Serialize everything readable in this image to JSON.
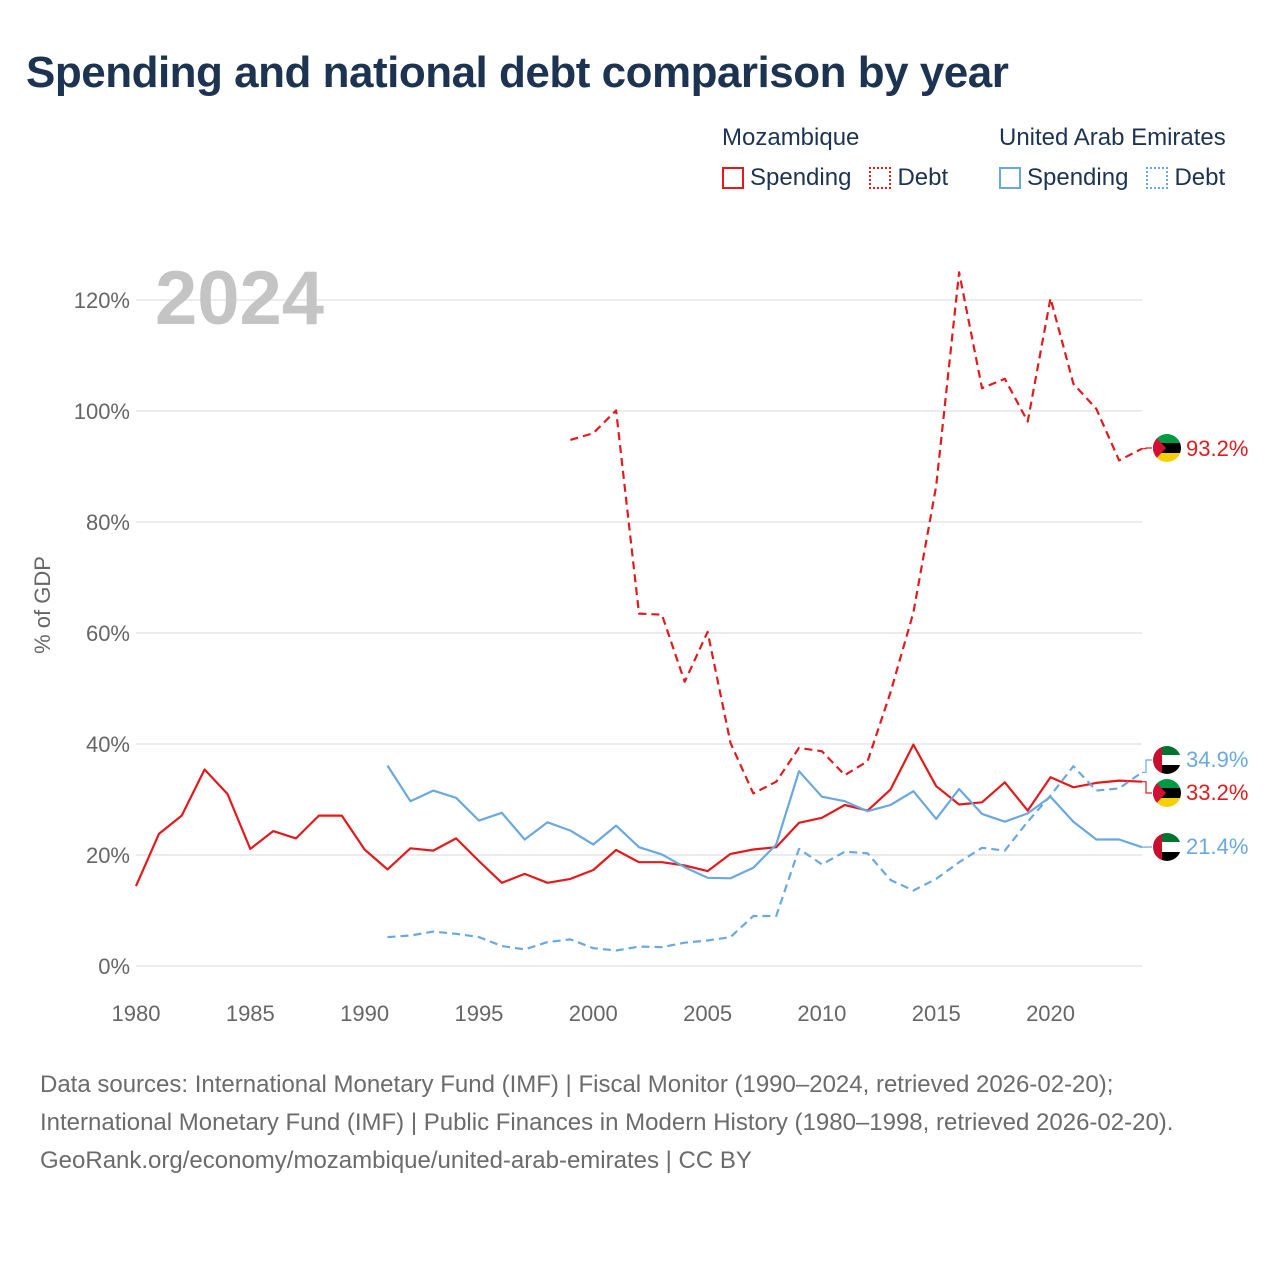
{
  "title": "Spending and national debt comparison by year",
  "year_label": "2024",
  "legend": {
    "groups": [
      {
        "name": "Mozambique",
        "color": "#e31a1c",
        "items": [
          "Spending",
          "Debt"
        ]
      },
      {
        "name": "United Arab Emirates",
        "color": "#6aa8e0",
        "items": [
          "Spending",
          "Debt"
        ]
      }
    ]
  },
  "footer": {
    "sources": "Data sources: International Monetary Fund (IMF) | Fiscal Monitor (1990–2024, retrieved 2026-02-20); International Monetary Fund (IMF) | Public Finances in Modern History (1980–1998, retrieved 2026-02-20).",
    "credit": "GeoRank.org/economy/mozambique/united-arab-emirates | CC BY"
  },
  "chart_data": {
    "type": "line",
    "title": "Spending and national debt comparison by year",
    "xlabel": "",
    "ylabel": "% of GDP",
    "xlim": [
      1980,
      2024
    ],
    "ylim": [
      0,
      125
    ],
    "x_ticks": [
      1980,
      1985,
      1990,
      1995,
      2000,
      2005,
      2010,
      2015,
      2020
    ],
    "y_ticks": [
      0,
      20,
      40,
      60,
      80,
      100,
      120
    ],
    "y_tick_labels": [
      "0%",
      "20%",
      "40%",
      "60%",
      "80%",
      "100%",
      "120%"
    ],
    "grid": true,
    "series": [
      {
        "name": "Mozambique Spending",
        "color": "#e31a1c",
        "dash": "solid",
        "end_label": "33.2%",
        "x": [
          1980,
          1981,
          1982,
          1983,
          1984,
          1985,
          1986,
          1987,
          1988,
          1989,
          1990,
          1991,
          1992,
          1993,
          1994,
          1995,
          1996,
          1997,
          1998,
          1999,
          2000,
          2001,
          2002,
          2003,
          2004,
          2005,
          2006,
          2007,
          2008,
          2009,
          2010,
          2011,
          2012,
          2013,
          2014,
          2015,
          2016,
          2017,
          2018,
          2019,
          2020,
          2021,
          2022,
          2023,
          2024
        ],
        "values": [
          14.4,
          23.8,
          27.1,
          35.4,
          31.0,
          21.1,
          24.3,
          23.0,
          27.1,
          27.1,
          21.0,
          17.4,
          21.2,
          20.8,
          23.0,
          18.9,
          15.0,
          16.6,
          15.0,
          15.7,
          17.3,
          20.9,
          18.7,
          18.7,
          18.1,
          17.1,
          20.2,
          21.0,
          21.4,
          25.8,
          26.7,
          29.0,
          28.0,
          31.8,
          39.9,
          32.4,
          29.1,
          29.5,
          33.1,
          28.0,
          34.0,
          32.2,
          33.0,
          33.4,
          33.2
        ]
      },
      {
        "name": "Mozambique Debt",
        "color": "#e31a1c",
        "dash": "dashed",
        "end_label": "93.2%",
        "x": [
          1999,
          2000,
          2001,
          2002,
          2003,
          2004,
          2005,
          2006,
          2007,
          2008,
          2009,
          2010,
          2011,
          2012,
          2013,
          2014,
          2015,
          2016,
          2017,
          2018,
          2019,
          2020,
          2021,
          2022,
          2023,
          2024
        ],
        "values": [
          94.8,
          96.0,
          100.1,
          63.5,
          63.3,
          51.2,
          60.2,
          40.2,
          31.1,
          33.2,
          39.3,
          38.7,
          34.4,
          36.9,
          49.3,
          63.7,
          86.5,
          125.0,
          104.1,
          105.8,
          98.1,
          120.3,
          104.9,
          100.4,
          91.1,
          93.2
        ]
      },
      {
        "name": "United Arab Emirates Spending",
        "color": "#6aa8e0",
        "dash": "solid",
        "end_label": "21.4%",
        "x": [
          1991,
          1992,
          1993,
          1994,
          1995,
          1996,
          1997,
          1998,
          1999,
          2000,
          2001,
          2002,
          2003,
          2004,
          2005,
          2006,
          2007,
          2008,
          2009,
          2010,
          2011,
          2012,
          2013,
          2014,
          2015,
          2016,
          2017,
          2018,
          2019,
          2020,
          2021,
          2022,
          2023,
          2024
        ],
        "values": [
          36.1,
          29.7,
          31.6,
          30.3,
          26.2,
          27.6,
          22.8,
          25.9,
          24.4,
          21.9,
          25.3,
          21.4,
          20.1,
          17.8,
          15.9,
          15.8,
          17.7,
          21.9,
          35.1,
          30.5,
          29.7,
          27.9,
          29.0,
          31.5,
          26.5,
          31.9,
          27.4,
          26.0,
          27.5,
          30.5,
          26.0,
          22.8,
          22.8,
          21.4
        ]
      },
      {
        "name": "United Arab Emirates Debt",
        "color": "#6aa8e0",
        "dash": "dashed",
        "end_label": "34.9%",
        "x": [
          1991,
          1992,
          1993,
          1994,
          1995,
          1996,
          1997,
          1998,
          1999,
          2000,
          2001,
          2002,
          2003,
          2004,
          2005,
          2006,
          2007,
          2008,
          2009,
          2010,
          2011,
          2012,
          2013,
          2014,
          2015,
          2016,
          2017,
          2018,
          2019,
          2020,
          2021,
          2022,
          2023,
          2024
        ],
        "values": [
          5.2,
          5.5,
          6.2,
          5.8,
          5.2,
          3.6,
          3.0,
          4.3,
          4.8,
          3.2,
          2.8,
          3.5,
          3.4,
          4.2,
          4.6,
          5.2,
          9.0,
          9.0,
          21.1,
          18.3,
          20.6,
          20.3,
          15.5,
          13.6,
          15.7,
          18.7,
          21.3,
          20.8,
          26.0,
          30.7,
          36.0,
          31.6,
          32.0,
          34.9
        ]
      }
    ]
  }
}
